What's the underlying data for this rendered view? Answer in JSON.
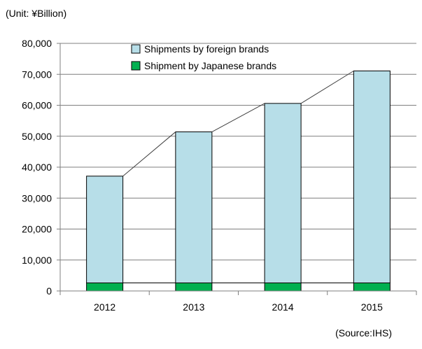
{
  "chart_data": {
    "type": "bar",
    "stacked": true,
    "unit_label": "(Unit: ¥Billion)",
    "source_label": "(Source:IHS)",
    "categories": [
      "2012",
      "2013",
      "2014",
      "2015"
    ],
    "series": [
      {
        "name": "Shipment by Japanese brands",
        "color": "#00b050",
        "values": [
          2600,
          2600,
          2600,
          2600
        ]
      },
      {
        "name": "Shipments by foreign brands",
        "color": "#b7dee8",
        "values": [
          34500,
          48800,
          58000,
          68500
        ]
      }
    ],
    "totals": [
      37100,
      51400,
      60600,
      71100
    ],
    "ylim": [
      0,
      80000
    ],
    "yticks": [
      "0",
      "10,000",
      "20,000",
      "30,000",
      "40,000",
      "50,000",
      "60,000",
      "70,000",
      "80,000"
    ],
    "ytick_values": [
      0,
      10000,
      20000,
      30000,
      40000,
      50000,
      60000,
      70000,
      80000
    ],
    "legend": {
      "placement": "top-center",
      "entries": [
        {
          "label": "Shipments by foreign brands",
          "color": "#b7dee8"
        },
        {
          "label": "Shipment by Japanese brands",
          "color": "#00b050"
        }
      ]
    },
    "grid": true,
    "series_lines": true
  }
}
